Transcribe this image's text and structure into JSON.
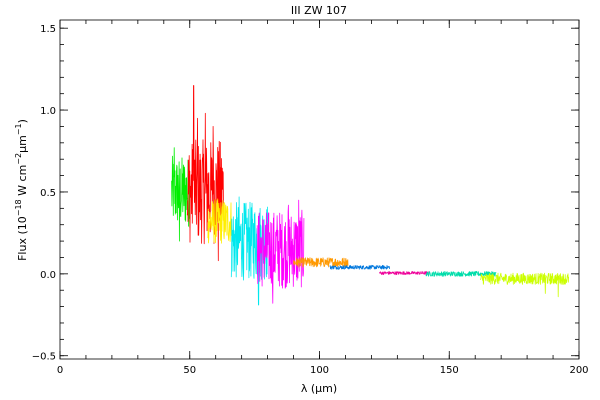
{
  "chart_data": {
    "type": "line",
    "title": "III ZW 107",
    "xlabel": "λ (μm)",
    "ylabel_parts": {
      "prefix": "Flux (10",
      "exp1": "−18",
      "mid": " W cm",
      "exp2": "−2",
      "mid2": "μm",
      "exp3": "−1",
      "suffix": ")"
    },
    "xlim": [
      0,
      200
    ],
    "ylim": [
      -0.52,
      1.55
    ],
    "xticks": [
      0,
      50,
      100,
      150,
      200
    ],
    "xtick_labels": [
      "0",
      "50",
      "100",
      "150",
      "200"
    ],
    "yticks": [
      -0.5,
      0.0,
      0.5,
      1.0,
      1.5
    ],
    "ytick_labels": [
      "−0.5",
      "0.0",
      "0.5",
      "1.0",
      "1.5"
    ],
    "x_minor_step": 10,
    "y_minor_step": 0.1,
    "grid": false,
    "series": [
      {
        "color": "#00ee00",
        "x_range": [
          43,
          50
        ],
        "base": 0.5,
        "noise": 0.22,
        "spikes": [
          [
            44,
            0.77
          ],
          [
            46,
            0.2
          ]
        ]
      },
      {
        "color": "#ff0000",
        "x_range": [
          49,
          63
        ],
        "base": 0.5,
        "noise": 0.32,
        "spikes": [
          [
            51.5,
            1.15
          ],
          [
            53,
            0.95
          ],
          [
            56,
            0.98
          ],
          [
            59,
            0.9
          ],
          [
            61,
            0.08
          ]
        ]
      },
      {
        "color": "#ffee00",
        "x_range": [
          57,
          66
        ],
        "base": 0.32,
        "noise": 0.14,
        "spikes": []
      },
      {
        "color": "#00e8ee",
        "x_range": [
          66,
          80
        ],
        "base": 0.2,
        "noise": 0.24,
        "spikes": [
          [
            69,
            0.47
          ],
          [
            76.5,
            -0.19
          ]
        ]
      },
      {
        "color": "#ff00ff",
        "x_range": [
          76,
          94
        ],
        "base": 0.15,
        "noise": 0.24,
        "spikes": [
          [
            88,
            0.42
          ],
          [
            92,
            0.45
          ],
          [
            82,
            -0.18
          ]
        ]
      },
      {
        "color": "#ff9900",
        "x_range": [
          90,
          111
        ],
        "base": 0.07,
        "noise": 0.03,
        "spikes": []
      },
      {
        "color": "#0077dd",
        "x_range": [
          104,
          127
        ],
        "base": 0.04,
        "noise": 0.012,
        "spikes": []
      },
      {
        "color": "#ee0099",
        "x_range": [
          123,
          142
        ],
        "base": 0.005,
        "noise": 0.01,
        "spikes": []
      },
      {
        "color": "#00ddaa",
        "x_range": [
          141,
          168
        ],
        "base": 0.0,
        "noise": 0.015,
        "spikes": []
      },
      {
        "color": "#ccff00",
        "x_range": [
          162,
          196
        ],
        "base": -0.03,
        "noise": 0.035,
        "spikes": [
          [
            187,
            -0.12
          ],
          [
            192,
            -0.14
          ]
        ]
      }
    ]
  }
}
